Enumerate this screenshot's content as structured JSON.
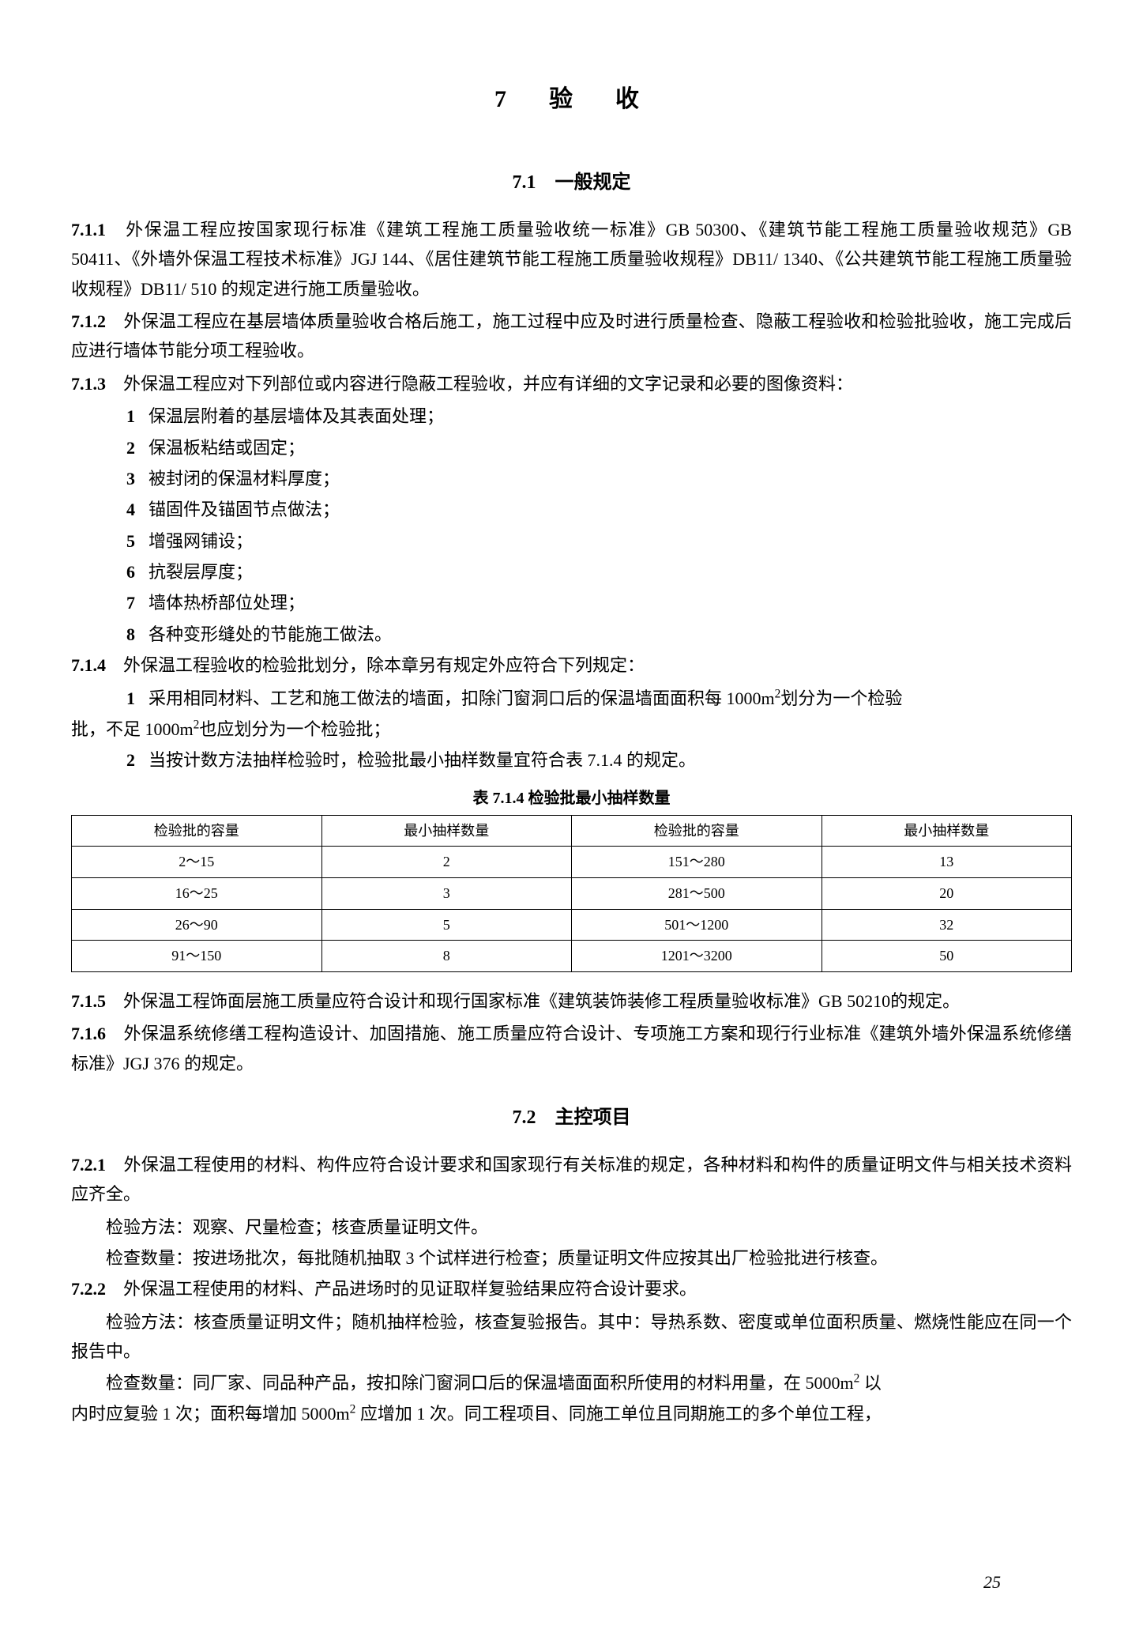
{
  "chapter": {
    "number": "7",
    "title": "验　收"
  },
  "section71": {
    "number": "7.1",
    "title": "一般规定"
  },
  "c711": {
    "num": "7.1.1",
    "text": "外保温工程应按国家现行标准《建筑工程施工质量验收统一标准》GB 50300、《建筑节能工程施工质量验收规范》GB 50411、《外墙外保温工程技术标准》JGJ 144、《居住建筑节能工程施工质量验收规程》DB11/ 1340、《公共建筑节能工程施工质量验收规程》DB11/ 510 的规定进行施工质量验收。"
  },
  "c712": {
    "num": "7.1.2",
    "text": "外保温工程应在基层墙体质量验收合格后施工，施工过程中应及时进行质量检查、隐蔽工程验收和检验批验收，施工完成后应进行墙体节能分项工程验收。"
  },
  "c713": {
    "num": "7.1.3",
    "text": "外保温工程应对下列部位或内容进行隐蔽工程验收，并应有详细的文字记录和必要的图像资料："
  },
  "c713_items": [
    {
      "n": "1",
      "t": "保温层附着的基层墙体及其表面处理；"
    },
    {
      "n": "2",
      "t": "保温板粘结或固定；"
    },
    {
      "n": "3",
      "t": "被封闭的保温材料厚度；"
    },
    {
      "n": "4",
      "t": "锚固件及锚固节点做法；"
    },
    {
      "n": "5",
      "t": "增强网铺设；"
    },
    {
      "n": "6",
      "t": "抗裂层厚度；"
    },
    {
      "n": "7",
      "t": "墙体热桥部位处理；"
    },
    {
      "n": "8",
      "t": "各种变形缝处的节能施工做法。"
    }
  ],
  "c714": {
    "num": "7.1.4",
    "text": "外保温工程验收的检验批划分，除本章另有规定外应符合下列规定："
  },
  "c714_i1": {
    "n": "1",
    "ta": "采用相同材料、工艺和施工做法的墙面，扣除门窗洞口后的保温墙面面积每 1000m",
    "tb": "划分为一个检验"
  },
  "c714_i1b": {
    "ta": "批，不足 1000m",
    "tb": "也应划分为一个检验批；"
  },
  "c714_i2": {
    "n": "2",
    "t": "当按计数方法抽样检验时，检验批最小抽样数量宜符合表 7.1.4 的规定。"
  },
  "table714": {
    "caption": "表 7.1.4  检验批最小抽样数量",
    "headers": [
      "检验批的容量",
      "最小抽样数量",
      "检验批的容量",
      "最小抽样数量"
    ],
    "rows": [
      [
        "2～15",
        "2",
        "151～280",
        "13"
      ],
      [
        "16～25",
        "3",
        "281～500",
        "20"
      ],
      [
        "26～90",
        "5",
        "501～1200",
        "32"
      ],
      [
        "91～150",
        "8",
        "1201～3200",
        "50"
      ]
    ],
    "border_color": "#000000",
    "background": "#ffffff",
    "header_fontsize": 18,
    "cell_fontsize": 18
  },
  "c715": {
    "num": "7.1.5",
    "text": "外保温工程饰面层施工质量应符合设计和现行国家标准《建筑装饰装修工程质量验收标准》GB 50210的规定。"
  },
  "c716": {
    "num": "7.1.6",
    "text": "外保温系统修缮工程构造设计、加固措施、施工质量应符合设计、专项施工方案和现行行业标准《建筑外墙外保温系统修缮标准》JGJ 376 的规定。"
  },
  "section72": {
    "number": "7.2",
    "title": "主控项目"
  },
  "c721": {
    "num": "7.2.1",
    "text": "外保温工程使用的材料、构件应符合设计要求和国家现行有关标准的规定，各种材料和构件的质量证明文件与相关技术资料应齐全。"
  },
  "c721_m": "检验方法：观察、尺量检查；核查质量证明文件。",
  "c721_q": "检查数量：按进场批次，每批随机抽取 3 个试样进行检查；质量证明文件应按其出厂检验批进行核查。",
  "c722": {
    "num": "7.2.2",
    "text": "外保温工程使用的材料、产品进场时的见证取样复验结果应符合设计要求。"
  },
  "c722_m": "检验方法：核查质量证明文件；随机抽样检验，核查复验报告。其中：导热系数、密度或单位面积质量、燃烧性能应在同一个报告中。",
  "c722_qa": "检查数量：同厂家、同品种产品，按扣除门窗洞口后的保温墙面面积所使用的材料用量，在 5000m",
  "c722_qb": "以",
  "c722_qc": "内时应复验 1 次；面积每增加 5000m",
  "c722_qd": "应增加 1 次。同工程项目、同施工单位且同期施工的多个单位工程，",
  "page_number": "25"
}
